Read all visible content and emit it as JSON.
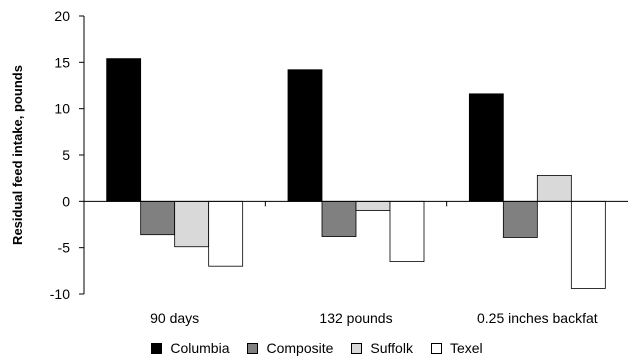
{
  "chart_data": {
    "type": "bar",
    "ylabel": "Residual feed intake, pounds",
    "xlabel": "",
    "title": "",
    "ylim": [
      -10,
      20
    ],
    "yticks": [
      20,
      15,
      10,
      5,
      0,
      -5,
      -10
    ],
    "categories": [
      "90 days",
      "132 pounds",
      "0.25 inches backfat"
    ],
    "series": [
      {
        "name": "Columbia",
        "color": "#000000",
        "values": [
          15.4,
          14.2,
          11.6
        ]
      },
      {
        "name": "Composite",
        "color": "#808080",
        "values": [
          -3.6,
          -3.8,
          -3.9
        ]
      },
      {
        "name": "Suffolk",
        "color": "#d9d9d9",
        "values": [
          -4.9,
          -1.0,
          2.8
        ]
      },
      {
        "name": "Texel",
        "color": "#ffffff",
        "values": [
          -7.0,
          -6.5,
          -9.4
        ]
      }
    ],
    "grid": false,
    "legend_position": "bottom"
  }
}
